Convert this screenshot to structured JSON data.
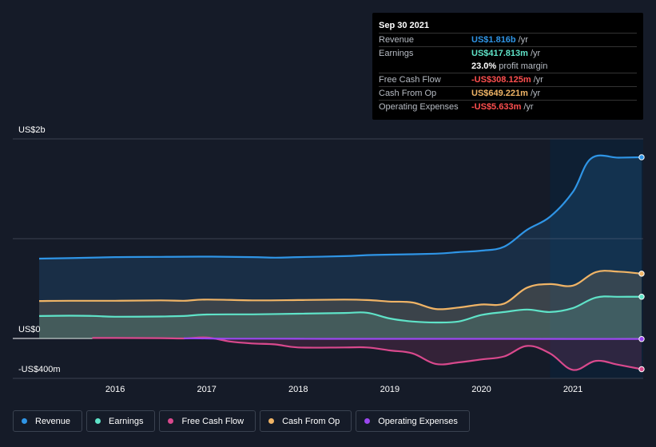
{
  "tooltip": {
    "date": "Sep 30 2021",
    "rows": [
      {
        "name": "Revenue",
        "value": "US$1.816b",
        "unit": "/yr",
        "color": "#2f95e6"
      },
      {
        "name": "Earnings",
        "value": "US$417.813m",
        "unit": "/yr",
        "color": "#5fe3c8"
      },
      {
        "name": "",
        "value": "23.0%",
        "unit": "profit margin",
        "color": "#ffffff"
      },
      {
        "name": "Free Cash Flow",
        "value": "-US$308.125m",
        "unit": "/yr",
        "color": "#ff4f4f"
      },
      {
        "name": "Cash From Op",
        "value": "US$649.221m",
        "unit": "/yr",
        "color": "#f0b466"
      },
      {
        "name": "Operating Expenses",
        "value": "-US$5.633m",
        "unit": "/yr",
        "color": "#ff4f4f"
      }
    ]
  },
  "legend": [
    {
      "label": "Revenue",
      "color": "#2f95e6"
    },
    {
      "label": "Earnings",
      "color": "#5fe3c8"
    },
    {
      "label": "Free Cash Flow",
      "color": "#d9498d"
    },
    {
      "label": "Cash From Op",
      "color": "#f0b466"
    },
    {
      "label": "Operating Expenses",
      "color": "#9b47f0"
    }
  ],
  "chart_data": {
    "type": "area",
    "y_labels": {
      "top": "US$2b",
      "zero": "US$0",
      "bottom": "-US$400m"
    },
    "ylim": [
      -400,
      2000
    ],
    "xlim": [
      2015.17,
      2021.75
    ],
    "x_ticks": [
      {
        "value": 2016,
        "label": "2016"
      },
      {
        "value": 2017,
        "label": "2017"
      },
      {
        "value": 2018,
        "label": "2018"
      },
      {
        "value": 2019,
        "label": "2019"
      },
      {
        "value": 2020,
        "label": "2020"
      },
      {
        "value": 2021,
        "label": "2021"
      }
    ],
    "highlight_from": 2020.75,
    "series": [
      {
        "name": "Revenue",
        "color": "#2f95e6",
        "points": [
          [
            2015.17,
            800
          ],
          [
            2015.5,
            805
          ],
          [
            2016,
            815
          ],
          [
            2016.5,
            818
          ],
          [
            2017,
            820
          ],
          [
            2017.5,
            815
          ],
          [
            2017.75,
            810
          ],
          [
            2018,
            815
          ],
          [
            2018.5,
            825
          ],
          [
            2018.75,
            835
          ],
          [
            2019,
            840
          ],
          [
            2019.5,
            850
          ],
          [
            2019.75,
            865
          ],
          [
            2020,
            880
          ],
          [
            2020.25,
            920
          ],
          [
            2020.5,
            1090
          ],
          [
            2020.75,
            1220
          ],
          [
            2021,
            1470
          ],
          [
            2021.2,
            1805
          ],
          [
            2021.5,
            1812
          ],
          [
            2021.75,
            1816
          ]
        ]
      },
      {
        "name": "Earnings",
        "color": "#5fe3c8",
        "points": [
          [
            2015.17,
            225
          ],
          [
            2015.5,
            228
          ],
          [
            2015.75,
            226
          ],
          [
            2016,
            218
          ],
          [
            2016.5,
            220
          ],
          [
            2016.75,
            225
          ],
          [
            2017,
            240
          ],
          [
            2017.5,
            242
          ],
          [
            2018,
            248
          ],
          [
            2018.5,
            255
          ],
          [
            2018.75,
            258
          ],
          [
            2019,
            200
          ],
          [
            2019.25,
            170
          ],
          [
            2019.5,
            160
          ],
          [
            2019.75,
            170
          ],
          [
            2020,
            235
          ],
          [
            2020.25,
            265
          ],
          [
            2020.5,
            290
          ],
          [
            2020.75,
            265
          ],
          [
            2021,
            305
          ],
          [
            2021.25,
            410
          ],
          [
            2021.5,
            418
          ],
          [
            2021.75,
            418
          ]
        ]
      },
      {
        "name": "Free Cash Flow",
        "color": "#d9498d",
        "points": [
          [
            2015.75,
            5
          ],
          [
            2016,
            5
          ],
          [
            2016.5,
            3
          ],
          [
            2016.75,
            0
          ],
          [
            2017,
            10
          ],
          [
            2017.25,
            -30
          ],
          [
            2017.5,
            -50
          ],
          [
            2017.75,
            -60
          ],
          [
            2018,
            -90
          ],
          [
            2018.5,
            -90
          ],
          [
            2018.75,
            -90
          ],
          [
            2019,
            -120
          ],
          [
            2019.25,
            -150
          ],
          [
            2019.5,
            -255
          ],
          [
            2019.75,
            -240
          ],
          [
            2020,
            -210
          ],
          [
            2020.25,
            -180
          ],
          [
            2020.5,
            -75
          ],
          [
            2020.75,
            -150
          ],
          [
            2021,
            -315
          ],
          [
            2021.25,
            -225
          ],
          [
            2021.5,
            -265
          ],
          [
            2021.75,
            -308
          ]
        ]
      },
      {
        "name": "Cash From Op",
        "color": "#f0b466",
        "points": [
          [
            2015.17,
            375
          ],
          [
            2015.5,
            378
          ],
          [
            2016,
            378
          ],
          [
            2016.5,
            382
          ],
          [
            2016.75,
            378
          ],
          [
            2017,
            390
          ],
          [
            2017.5,
            382
          ],
          [
            2018,
            385
          ],
          [
            2018.5,
            390
          ],
          [
            2018.75,
            385
          ],
          [
            2019,
            370
          ],
          [
            2019.25,
            360
          ],
          [
            2019.5,
            295
          ],
          [
            2019.75,
            310
          ],
          [
            2020,
            340
          ],
          [
            2020.25,
            350
          ],
          [
            2020.5,
            510
          ],
          [
            2020.75,
            545
          ],
          [
            2021,
            530
          ],
          [
            2021.25,
            665
          ],
          [
            2021.5,
            670
          ],
          [
            2021.75,
            649
          ]
        ]
      },
      {
        "name": "Operating Expenses",
        "color": "#9b47f0",
        "points": [
          [
            2016.75,
            2
          ],
          [
            2017,
            0
          ],
          [
            2017.25,
            -2
          ],
          [
            2018,
            -3
          ],
          [
            2018.5,
            -4
          ],
          [
            2019,
            -4
          ],
          [
            2020,
            -4
          ],
          [
            2021,
            -5
          ],
          [
            2021.75,
            -5.6
          ]
        ]
      }
    ]
  }
}
